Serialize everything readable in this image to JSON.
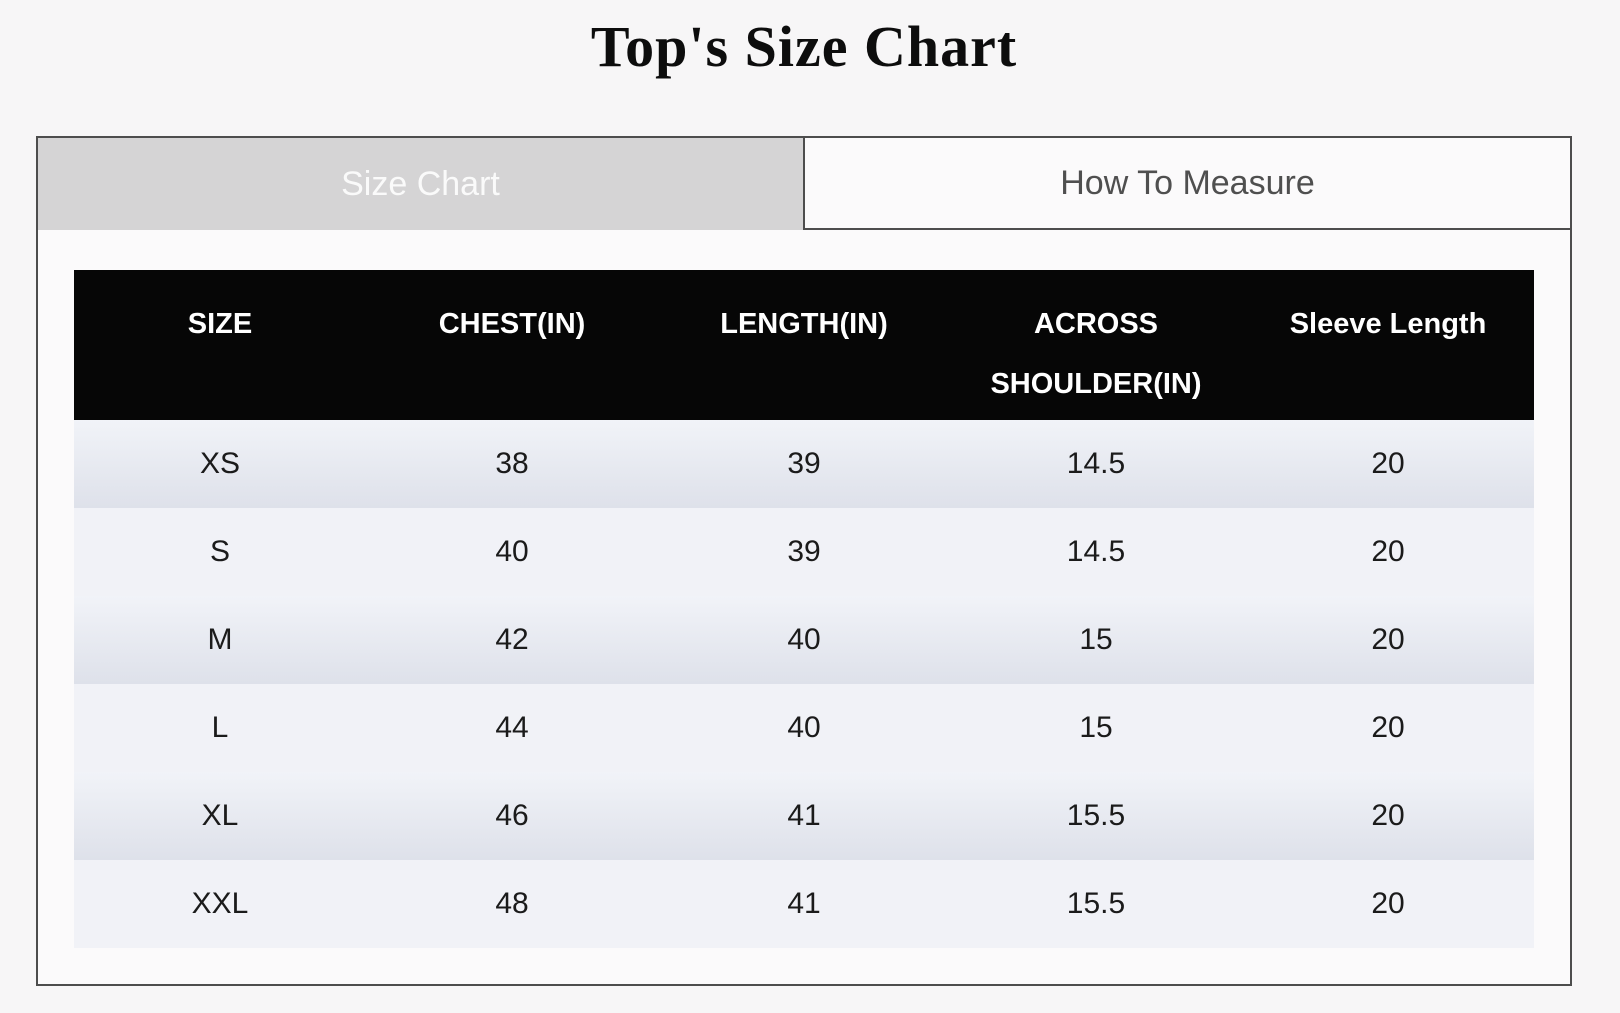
{
  "title": "Top's Size Chart",
  "tabs": [
    {
      "label": "Size Chart",
      "active": true
    },
    {
      "label": "How To Measure",
      "active": false
    }
  ],
  "size_table": {
    "headers": [
      "SIZE",
      "CHEST(IN)",
      "LENGTH(IN)",
      "ACROSS SHOULDER(IN)",
      "Sleeve Length"
    ],
    "rows": [
      [
        "XS",
        "38",
        "39",
        "14.5",
        "20"
      ],
      [
        "S",
        "40",
        "39",
        "14.5",
        "20"
      ],
      [
        "M",
        "42",
        "40",
        "15",
        "20"
      ],
      [
        "L",
        "44",
        "40",
        "15",
        "20"
      ],
      [
        "XL",
        "46",
        "41",
        "15.5",
        "20"
      ],
      [
        "XXL",
        "48",
        "41",
        "15.5",
        "20"
      ]
    ]
  },
  "colors": {
    "page_bg": "#f7f6f7",
    "panel_bg": "#fbfafb",
    "panel_border": "#4d4d4d",
    "tab_active_bg": "#d5d4d5",
    "tab_active_text": "#fafafa",
    "tab_inactive_text": "#4f4f4f",
    "header_bg": "#060606",
    "header_text": "#ffffff",
    "row_odd_gradient_top": "#f1f3f8",
    "row_odd_gradient_bottom": "#dee1ea",
    "row_even_bg": "#f1f2f7",
    "cell_text": "#1b1b1b"
  }
}
